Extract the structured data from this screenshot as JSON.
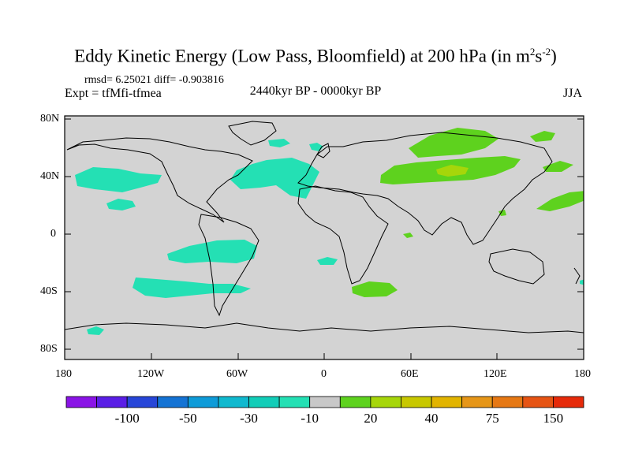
{
  "title": {
    "main": "Eddy Kinetic Energy (Low Pass, Bloomfield) at 200 hPa (in m",
    "sup1": "2",
    "mid": "s",
    "sup2": "-2",
    "end": ")"
  },
  "stats": "rmsd= 6.25021 diff= -0.903816",
  "experiment": "Expt = tfMfi-tfmea",
  "period": "2440kyr BP - 0000kyr BP",
  "season": "JJA",
  "lat_labels": [
    "80N",
    "40N",
    "0",
    "40S",
    "80S"
  ],
  "lon_labels": [
    "180",
    "120W",
    "60W",
    "0",
    "60E",
    "120E",
    "180"
  ],
  "colorbar": {
    "colors": [
      "#8a14e6",
      "#5a1ee6",
      "#2746d8",
      "#1473d4",
      "#0e9bd8",
      "#10b9cf",
      "#12cdb8",
      "#24e0b4",
      "#c8c8c8",
      "#5ed21e",
      "#a6d60a",
      "#c8c800",
      "#e2b400",
      "#e69618",
      "#e67814",
      "#e65414",
      "#e62a0a"
    ],
    "labels": [
      "-100",
      "-50",
      "-30",
      "-10",
      "20",
      "40",
      "75",
      "150"
    ]
  },
  "legend_colors": {
    "background": "#d3d3d3",
    "negative": "#24e0b4",
    "positive": "#5ed21e",
    "positive_strong": "#a6d60a"
  }
}
